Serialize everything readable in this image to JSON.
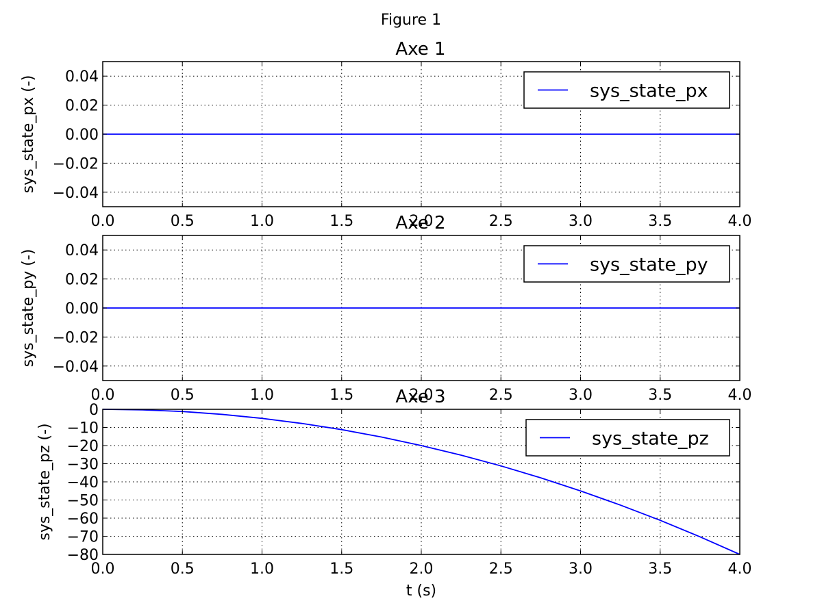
{
  "figure_title": "Figure 1",
  "xlabel": "t (s)",
  "chart_data": [
    {
      "type": "line",
      "title": "Axe 1",
      "ylabel": "sys_state_px (-)",
      "xlim": [
        0.0,
        4.0
      ],
      "ylim": [
        -0.05,
        0.05
      ],
      "grid": true,
      "legend_position": "top-right",
      "x_ticks": [
        "0.0",
        "0.5",
        "1.0",
        "1.5",
        "2.0",
        "2.5",
        "3.0",
        "3.5",
        "4.0"
      ],
      "y_ticks": [
        {
          "value": 0.04,
          "label": "0.04"
        },
        {
          "value": 0.02,
          "label": "0.02"
        },
        {
          "value": 0.0,
          "label": "0.00"
        },
        {
          "value": -0.02,
          "label": "−0.02"
        },
        {
          "value": -0.04,
          "label": "−0.04"
        }
      ],
      "series": [
        {
          "name": "sys_state_px",
          "color": "#0000ff",
          "x": [
            0.0,
            4.0
          ],
          "y": [
            0.0,
            0.0
          ]
        }
      ]
    },
    {
      "type": "line",
      "title": "Axe 2",
      "ylabel": "sys_state_py (-)",
      "xlim": [
        0.0,
        4.0
      ],
      "ylim": [
        -0.05,
        0.05
      ],
      "grid": true,
      "legend_position": "top-right",
      "x_ticks": [
        "0.0",
        "0.5",
        "1.0",
        "1.5",
        "2.0",
        "2.5",
        "3.0",
        "3.5",
        "4.0"
      ],
      "y_ticks": [
        {
          "value": 0.04,
          "label": "0.04"
        },
        {
          "value": 0.02,
          "label": "0.02"
        },
        {
          "value": 0.0,
          "label": "0.00"
        },
        {
          "value": -0.02,
          "label": "−0.02"
        },
        {
          "value": -0.04,
          "label": "−0.04"
        }
      ],
      "series": [
        {
          "name": "sys_state_py",
          "color": "#0000ff",
          "x": [
            0.0,
            4.0
          ],
          "y": [
            0.0,
            0.0
          ]
        }
      ]
    },
    {
      "type": "line",
      "title": "Axe 3",
      "ylabel": "sys_state_pz (-)",
      "xlim": [
        0.0,
        4.0
      ],
      "ylim": [
        -80,
        0
      ],
      "grid": true,
      "legend_position": "top-right",
      "x_ticks": [
        "0.0",
        "0.5",
        "1.0",
        "1.5",
        "2.0",
        "2.5",
        "3.0",
        "3.5",
        "4.0"
      ],
      "y_ticks": [
        {
          "value": 0,
          "label": "0"
        },
        {
          "value": -10,
          "label": "−10"
        },
        {
          "value": -20,
          "label": "−20"
        },
        {
          "value": -30,
          "label": "−30"
        },
        {
          "value": -40,
          "label": "−40"
        },
        {
          "value": -50,
          "label": "−50"
        },
        {
          "value": -60,
          "label": "−60"
        },
        {
          "value": -70,
          "label": "−70"
        },
        {
          "value": -80,
          "label": "−80"
        }
      ],
      "series": [
        {
          "name": "sys_state_pz",
          "color": "#0000ff",
          "x": [
            0.0,
            0.25,
            0.5,
            0.75,
            1.0,
            1.25,
            1.5,
            1.75,
            2.0,
            2.25,
            2.5,
            2.75,
            3.0,
            3.25,
            3.5,
            3.75,
            4.0
          ],
          "y": [
            0.0,
            -0.3,
            -1.2,
            -2.8,
            -5.0,
            -7.8,
            -11.2,
            -15.3,
            -20.0,
            -25.3,
            -31.2,
            -37.8,
            -45.0,
            -52.8,
            -61.2,
            -70.3,
            -80.0
          ]
        }
      ]
    }
  ]
}
